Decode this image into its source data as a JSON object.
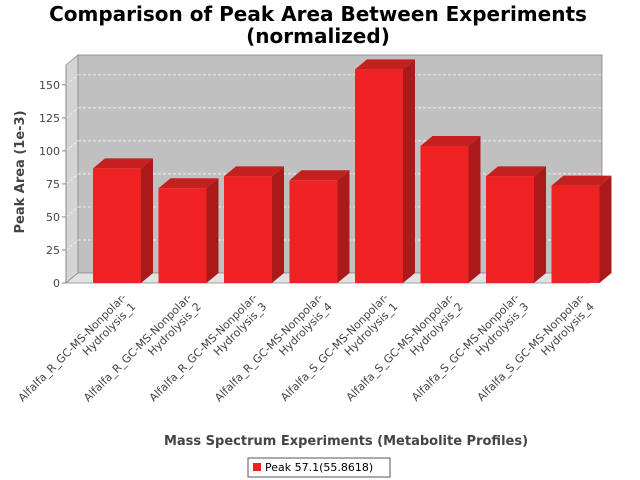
{
  "chart_data": {
    "type": "bar",
    "title": [
      "Comparison of Peak Area Between Experiments",
      "(normalized)"
    ],
    "xlabel": "Mass Spectrum Experiments (Metabolite Profiles)",
    "ylabel": "Peak Area (1e-3)",
    "ylim": [
      0,
      165
    ],
    "yticks": [
      0,
      25,
      50,
      75,
      100,
      125,
      150
    ],
    "categories": [
      [
        "Alfalfa_R_GC-MS-Nonpolar-",
        "Hydrolysis_1"
      ],
      [
        "Alfalfa_R_GC-MS-Nonpolar-",
        "Hydrolysis_2"
      ],
      [
        "Alfalfa_R_GC-MS-Nonpolar-",
        "Hydrolysis_3"
      ],
      [
        "Alfalfa_R_GC-MS-Nonpolar-",
        "Hydrolysis_4"
      ],
      [
        "Alfalfa_S_GC-MS-Nonpolar-",
        "Hydrolysis_1"
      ],
      [
        "Alfalfa_S_GC-MS-Nonpolar-",
        "Hydrolysis_2"
      ],
      [
        "Alfalfa_S_GC-MS-Nonpolar-",
        "Hydrolysis_3"
      ],
      [
        "Alfalfa_S_GC-MS-Nonpolar-",
        "Hydrolysis_4"
      ]
    ],
    "series": [
      {
        "name": "Peak 57.1(55.8618)",
        "values": [
          89,
          74,
          83,
          80,
          164,
          106,
          83,
          76
        ]
      }
    ],
    "legend_position": "bottom-center",
    "grid": true,
    "colors": {
      "bar_front": "#ee2222",
      "bar_side": "#aa1a1a",
      "bar_top": "#c42020",
      "plot_back": "#c0c0c0",
      "plot_wall": "#d4d4d4",
      "plot_floor": "#e2e2e2"
    }
  }
}
